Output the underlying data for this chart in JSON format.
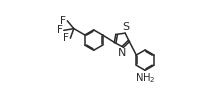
{
  "bg_color": "#ffffff",
  "line_color": "#2a2a2a",
  "line_width": 1.1,
  "font_size": 7.2,
  "label_color": "#2a2a2a",
  "figsize": [
    2.18,
    0.92
  ],
  "dpi": 100,
  "xlim": [
    0.0,
    10.5
  ],
  "ylim": [
    -4.2,
    2.2
  ]
}
